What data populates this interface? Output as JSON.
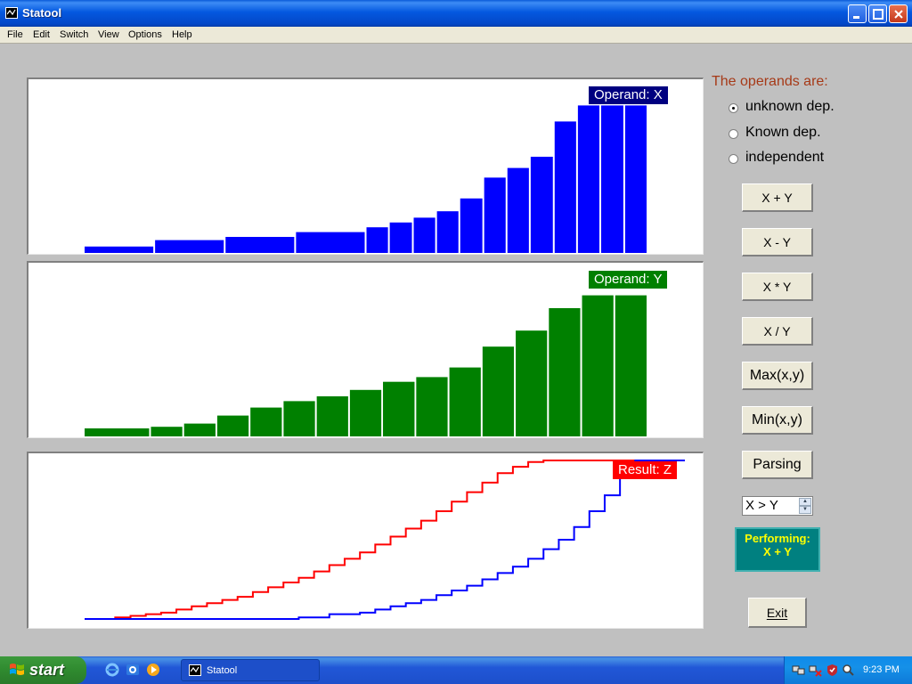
{
  "window": {
    "title": "Statool"
  },
  "menu": [
    "File",
    "Edit",
    "Switch",
    "View",
    "Options",
    "Help"
  ],
  "panels": {
    "operand_x": {
      "label": "Operand:  X",
      "color": "#0000ff",
      "label_bg": "#000080"
    },
    "operand_y": {
      "label": "Operand:  Y",
      "color": "#008000",
      "label_bg": "#008000"
    },
    "result_z": {
      "label": "Result: Z",
      "color": "#ff0000",
      "label_bg": "#ff0000"
    }
  },
  "chart_data": [
    {
      "type": "bar",
      "name": "Operand X",
      "series_color": "#0000ff",
      "bins": [
        [
          0,
          1,
          4
        ],
        [
          1,
          2,
          8
        ],
        [
          2,
          3,
          10
        ],
        [
          3,
          4,
          13
        ],
        [
          4,
          4.33,
          16
        ],
        [
          4.33,
          4.67,
          19
        ],
        [
          4.67,
          5,
          22
        ],
        [
          5,
          5.33,
          26
        ],
        [
          5.33,
          5.67,
          34
        ],
        [
          5.67,
          6,
          47
        ],
        [
          6,
          6.33,
          53
        ],
        [
          6.33,
          6.67,
          60
        ],
        [
          6.67,
          7,
          82
        ],
        [
          7,
          7.33,
          92
        ],
        [
          7.33,
          7.67,
          92
        ],
        [
          7.67,
          8,
          92
        ]
      ]
    },
    {
      "type": "bar",
      "name": "Operand Y",
      "series_color": "#008000",
      "bins": [
        [
          0,
          1,
          5
        ],
        [
          1,
          1.5,
          6
        ],
        [
          1.5,
          2,
          8
        ],
        [
          2,
          2.5,
          13
        ],
        [
          2.5,
          3,
          18
        ],
        [
          3,
          3.5,
          22
        ],
        [
          3.5,
          4,
          25
        ],
        [
          4,
          4.5,
          29
        ],
        [
          4.5,
          5,
          34
        ],
        [
          4.5,
          5,
          34
        ],
        [
          5,
          5.5,
          37
        ],
        [
          5.5,
          6,
          43
        ],
        [
          6,
          6.5,
          56
        ],
        [
          6.5,
          7,
          66
        ],
        [
          7,
          7.5,
          80
        ],
        [
          7.5,
          8,
          88
        ],
        [
          8,
          8.5,
          88
        ]
      ]
    },
    {
      "type": "line",
      "name": "Result Z",
      "series": [
        {
          "name": "Z (red)",
          "color": "#ff0000",
          "x": [
            0,
            1,
            2,
            3,
            4,
            5,
            6,
            7,
            8,
            9,
            10,
            11,
            12,
            13,
            14,
            15,
            16,
            17,
            18,
            19,
            20,
            21,
            22,
            23,
            24,
            25,
            26,
            27,
            28,
            29,
            30,
            31,
            32,
            33,
            34,
            35,
            36,
            37,
            38,
            39,
            40
          ],
          "y": [
            0,
            0,
            1,
            2,
            3,
            4,
            6,
            8,
            10,
            12,
            14,
            17,
            20,
            23,
            26,
            30,
            34,
            38,
            42,
            47,
            52,
            57,
            62,
            68,
            74,
            80,
            86,
            92,
            96,
            99,
            100,
            100,
            100,
            100,
            100,
            100,
            100,
            100,
            100,
            100,
            100
          ]
        },
        {
          "name": "Z (blue)",
          "color": "#0000ff",
          "x": [
            0,
            1,
            2,
            3,
            4,
            5,
            6,
            7,
            8,
            9,
            10,
            11,
            12,
            13,
            14,
            15,
            16,
            17,
            18,
            19,
            20,
            21,
            22,
            23,
            24,
            25,
            26,
            27,
            28,
            29,
            30,
            31,
            32,
            33,
            34,
            35,
            36,
            37,
            38,
            39,
            40
          ],
          "y": [
            0,
            0,
            0,
            0,
            0,
            0,
            0,
            0,
            0,
            0,
            0,
            0,
            0,
            0,
            1,
            1,
            3,
            3,
            4,
            6,
            8,
            10,
            12,
            15,
            18,
            21,
            25,
            29,
            33,
            38,
            44,
            50,
            58,
            68,
            78,
            90,
            100,
            100,
            100,
            100,
            100
          ]
        }
      ]
    }
  ],
  "operands": {
    "label": "The operands are:",
    "options": [
      {
        "label": "unknown dep.",
        "selected": true
      },
      {
        "label": "Known dep.",
        "selected": false
      },
      {
        "label": "independent",
        "selected": false
      }
    ]
  },
  "buttons": {
    "add": "X + Y",
    "sub": "X - Y",
    "mul": "X * Y",
    "div": "X / Y",
    "max": "Max(x,y)",
    "min": "Min(x,y)",
    "parsing": "Parsing"
  },
  "comparison": {
    "value": "X > Y"
  },
  "performing": {
    "line1": "Performing:",
    "line2": "X + Y"
  },
  "exit": {
    "label": "Exit"
  },
  "taskbar": {
    "start": "start",
    "task": "Statool",
    "clock": "9:23 PM"
  }
}
